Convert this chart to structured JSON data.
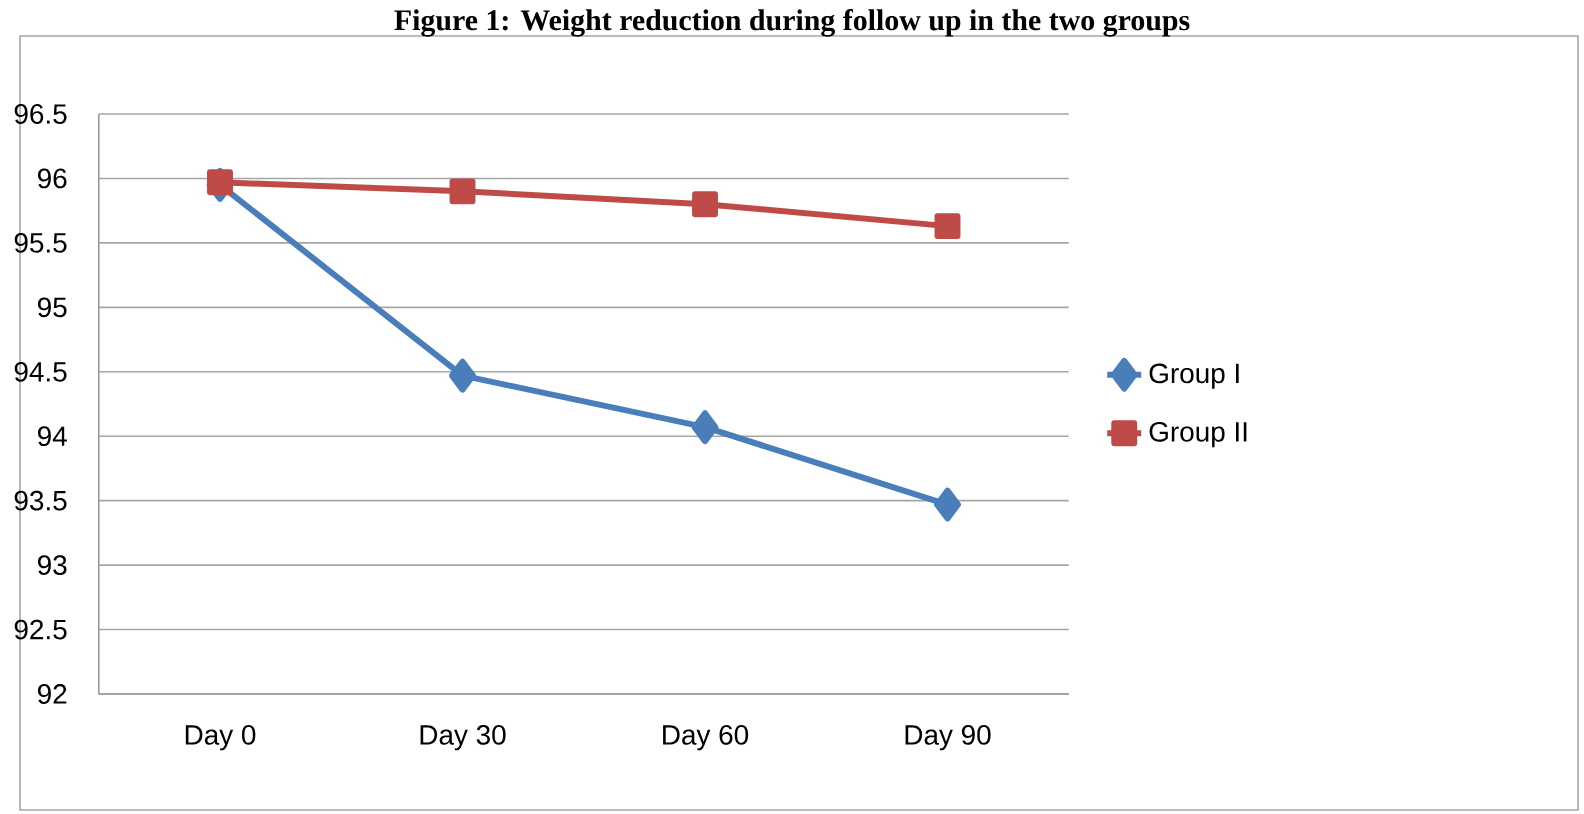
{
  "chart_data": {
    "type": "line",
    "title": "Figure 1: Weight reduction during follow up in the two groups",
    "categories": [
      "Day 0",
      "Day 30",
      "Day 60",
      "Day 90"
    ],
    "series": [
      {
        "name": "Group I",
        "color": "#4a7ebb",
        "values": [
          95.95,
          94.47,
          94.07,
          93.47
        ],
        "marker": "diamond"
      },
      {
        "name": "Group II",
        "color": "#be4b48",
        "values": [
          95.97,
          95.9,
          95.8,
          95.63
        ],
        "marker": "square"
      }
    ],
    "ylim": [
      92,
      96.5
    ],
    "yticks": [
      92,
      92.5,
      93,
      93.5,
      94,
      94.5,
      95,
      95.5,
      96,
      96.5
    ],
    "grid": "y",
    "legend": "right",
    "line_style": "solid"
  }
}
